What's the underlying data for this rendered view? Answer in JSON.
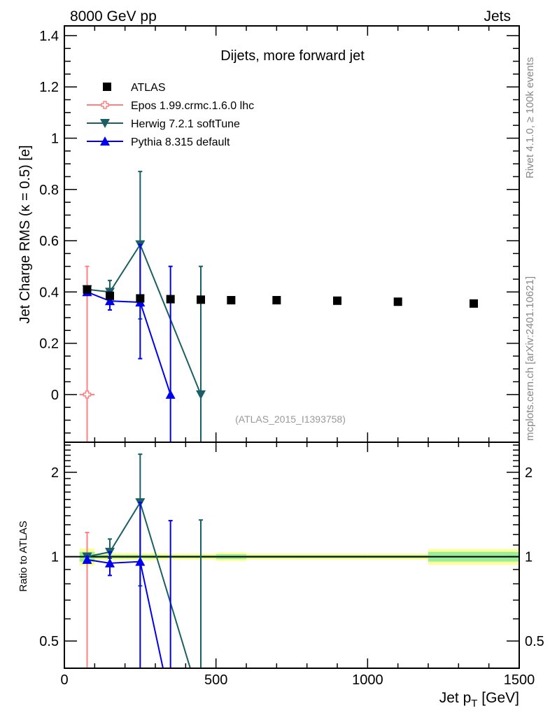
{
  "chart_data": {
    "type": "scatter",
    "header_left": "8000 GeV pp",
    "header_right": "Jets",
    "title": "Dijets, more forward jet",
    "watermark": "(ATLAS_2015_I1393758)",
    "side_label_top": "Rivet 4.1.0, ≥ 100k events",
    "side_label_bottom": "mcplots.cern.ch [arXiv:2401.10621]",
    "xlabel": "Jet p_T [GeV]",
    "xlabel_main": "Jet p",
    "xlabel_sub": "T",
    "xlabel_unit": "[GeV]",
    "ylabel": "Jet Charge RMS (κ = 0.5) [e]",
    "ratio_ylabel": "Ratio to ATLAS",
    "xlim": [
      0,
      1500
    ],
    "ylim": [
      -0.186,
      1.438
    ],
    "ratio_ylim": [
      0.4,
      2.56
    ],
    "xticks": [
      0,
      500,
      1000,
      1500
    ],
    "yticks": [
      0,
      0.2,
      0.4,
      0.6,
      0.8,
      1,
      1.2,
      1.4
    ],
    "ratio_yticks": [
      0.5,
      1,
      2
    ],
    "reference": {
      "name": "ATLAS",
      "color": "#000000",
      "marker": "square",
      "x": [
        75,
        150,
        250,
        350,
        450,
        550,
        700,
        900,
        1100,
        1350
      ],
      "y": [
        0.41,
        0.385,
        0.375,
        0.372,
        0.37,
        0.368,
        0.368,
        0.366,
        0.362,
        0.355
      ],
      "bin_edges": [
        50,
        100,
        200,
        300,
        400,
        500,
        600,
        800,
        1000,
        1200,
        1500
      ],
      "band_outer": [
        0.07,
        0.03,
        0.03,
        0.025,
        0.025,
        0.035,
        0.025,
        0.025,
        0.025,
        0.065
      ],
      "band_inner": [
        0.04,
        0.015,
        0.015,
        0.012,
        0.012,
        0.02,
        0.012,
        0.012,
        0.012,
        0.04
      ]
    },
    "series": [
      {
        "name": "Epos 1.99.crmc.1.6.0 lhc",
        "color": "#ff8080",
        "marker": "open-cross",
        "x": [
          75
        ],
        "y": [
          0.0
        ],
        "yerr_lo": [
          0.5
        ],
        "yerr_hi": [
          0.5
        ],
        "xerr": [
          25
        ]
      },
      {
        "name": "Herwig 7.2.1 softTune",
        "color": "#1a5e66",
        "marker": "triangle-down",
        "x": [
          75,
          150,
          250,
          450
        ],
        "y": [
          0.41,
          0.4,
          0.585,
          0.0
        ],
        "yerr_lo": [
          0.01,
          0.02,
          0.29,
          0.5
        ],
        "yerr_hi": [
          0.01,
          0.045,
          0.285,
          0.5
        ],
        "xerr": [
          0,
          0,
          0,
          0
        ]
      },
      {
        "name": "Pythia 8.315 default",
        "color": "#0000ee",
        "marker": "triangle-up",
        "x": [
          75,
          150,
          250,
          350
        ],
        "y": [
          0.4,
          0.365,
          0.36,
          0.0
        ],
        "yerr_lo": [
          0.01,
          0.035,
          0.22,
          0.5
        ],
        "yerr_hi": [
          0.01,
          0.035,
          0.225,
          0.5
        ],
        "xerr": [
          0,
          0,
          0,
          0
        ]
      }
    ]
  }
}
